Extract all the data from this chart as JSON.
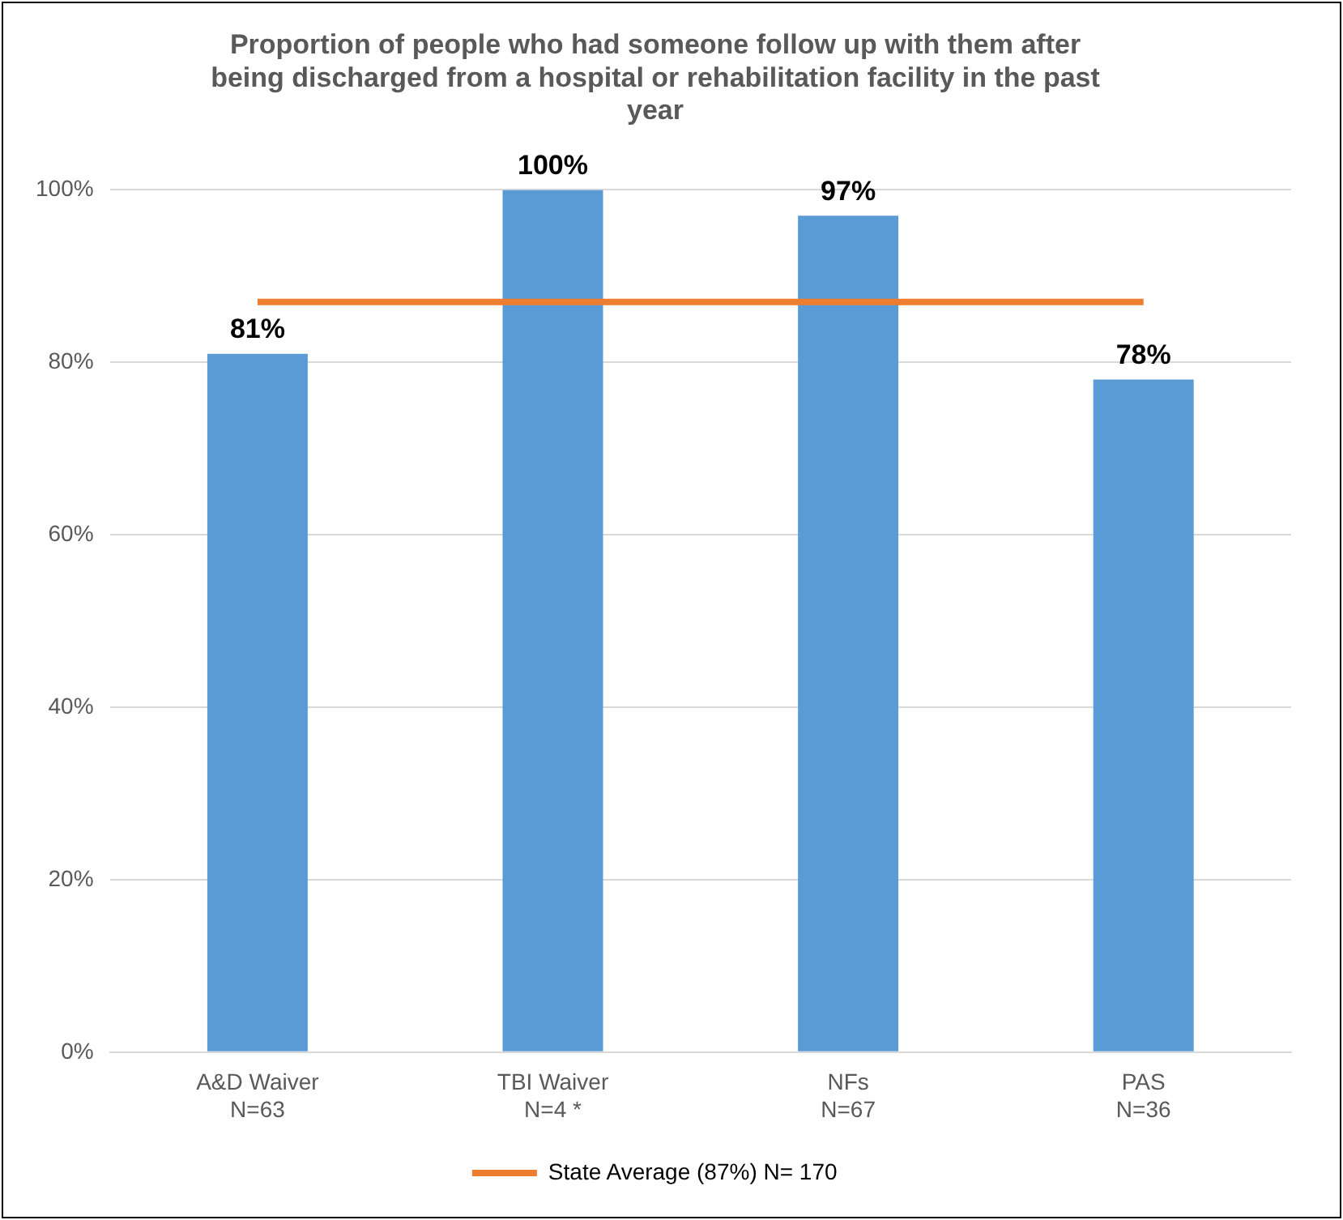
{
  "chart_data": {
    "type": "bar",
    "title": "Proportion of people who had someone follow up with them after being discharged from a hospital or rehabilitation facility in the past year",
    "categories": [
      "A&D Waiver\nN=63",
      "TBI Waiver\nN=4 *",
      "NFs\nN=67",
      "PAS\nN=36"
    ],
    "series": [
      {
        "color": "#5b9bd5",
        "values": [
          81,
          100,
          97,
          78
        ],
        "value_labels": [
          "81%",
          "100%",
          "97%",
          "78%"
        ]
      },
      {
        "type": "line",
        "name": "State Average (87%) N= 170",
        "color": "#ed7d31",
        "values": [
          87,
          87,
          87,
          87
        ]
      }
    ],
    "ylim": [
      0,
      100
    ],
    "yticks": [
      {
        "value": 0,
        "label": "0%"
      },
      {
        "value": 20,
        "label": "20%"
      },
      {
        "value": 40,
        "label": "40%"
      },
      {
        "value": 60,
        "label": "60%"
      },
      {
        "value": 80,
        "label": "80%"
      },
      {
        "value": 100,
        "label": "100%"
      }
    ],
    "grid": "y",
    "legend": "bottom",
    "marker": "none"
  }
}
